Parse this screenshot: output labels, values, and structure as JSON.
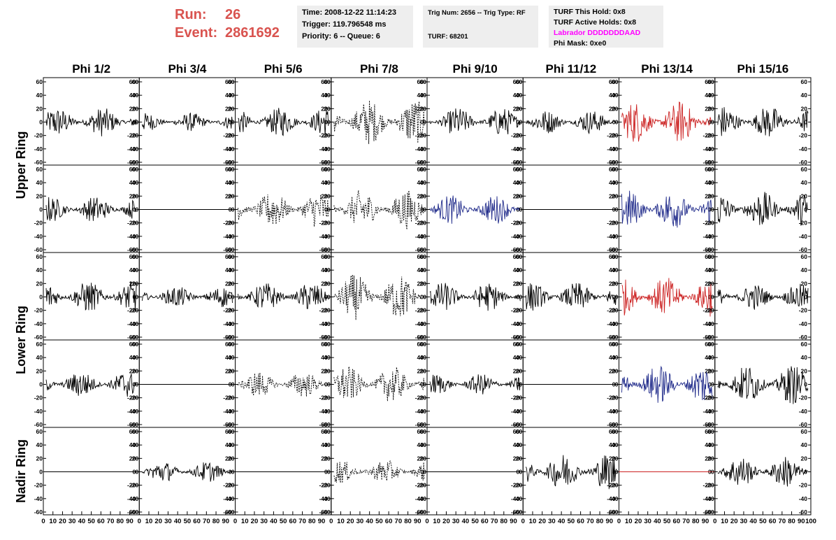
{
  "header": {
    "run_label": "Run:",
    "run_value": "26",
    "event_label": "Event:",
    "event_value": "2861692",
    "time": "Time: 2008-12-22 11:14:23",
    "trigger": "Trigger: 119.796548 ms",
    "priority": "Priority: 6 -- Queue: 6",
    "trig_num": "Trig Num: 2656 -- Trig Type: RF",
    "turf": "TURF: 68201",
    "turf_this_hold": "TURF This Hold: 0x8",
    "turf_active_holds": "TURF Active Holds: 0x8",
    "labrador": "Labrador DDDDDDDAAD",
    "phi_mask": "Phi Mask: 0xe0",
    "colors": {
      "run": "#d9534f",
      "labrador": "#ff00ff",
      "info_bg": "#eeeeee"
    }
  },
  "chart_data": {
    "type": "line",
    "grid": false,
    "columns": [
      "Phi 1/2",
      "Phi 3/4",
      "Phi 5/6",
      "Phi 7/8",
      "Phi 9/10",
      "Phi 11/12",
      "Phi 13/14",
      "Phi 15/16"
    ],
    "row_groups": [
      {
        "label": "Upper Ring",
        "rows": [
          0,
          1
        ]
      },
      {
        "label": "Lower Ring",
        "rows": [
          2,
          3
        ]
      },
      {
        "label": "Nadir Ring",
        "rows": [
          4
        ]
      }
    ],
    "xlim": [
      0,
      100
    ],
    "ylim": [
      -60,
      60
    ],
    "y_ticks": [
      "60",
      "40",
      "20",
      "0",
      "-20",
      "-40",
      "-60"
    ],
    "x_ticks": [
      "0",
      "10",
      "20",
      "30",
      "40",
      "50",
      "60",
      "70",
      "80",
      "90",
      "100"
    ],
    "colors": {
      "black": "#000000",
      "red": "#cc2222",
      "blue": "#1f2a8a"
    },
    "panels": [
      [
        {
          "style": "solid",
          "color": "black",
          "amp": 22
        },
        {
          "style": "solid",
          "color": "black",
          "amp": 14
        },
        {
          "style": "solid",
          "color": "black",
          "amp": 22
        },
        {
          "style": "dashed",
          "color": "black",
          "amp": 35
        },
        {
          "style": "solid",
          "color": "black",
          "amp": 22
        },
        {
          "style": "solid",
          "color": "black",
          "amp": 18
        },
        {
          "style": "solid",
          "color": "red",
          "amp": 32
        },
        {
          "style": "solid",
          "color": "black",
          "amp": 25
        }
      ],
      [
        {
          "style": "solid",
          "color": "black",
          "amp": 20
        },
        {
          "style": "flat",
          "color": "black",
          "amp": 0
        },
        {
          "style": "dashed",
          "color": "black",
          "amp": 28
        },
        {
          "style": "dashed",
          "color": "black",
          "amp": 30
        },
        {
          "style": "solid",
          "color": "blue",
          "amp": 22
        },
        {
          "style": "flat",
          "color": "black",
          "amp": 0
        },
        {
          "style": "solid",
          "color": "blue",
          "amp": 30
        },
        {
          "style": "solid",
          "color": "black",
          "amp": 28
        }
      ],
      [
        {
          "style": "solid",
          "color": "black",
          "amp": 24
        },
        {
          "style": "solid",
          "color": "black",
          "amp": 16
        },
        {
          "style": "solid",
          "color": "black",
          "amp": 22
        },
        {
          "style": "dashed",
          "color": "black",
          "amp": 35
        },
        {
          "style": "solid",
          "color": "black",
          "amp": 22
        },
        {
          "style": "solid",
          "color": "black",
          "amp": 22
        },
        {
          "style": "solid",
          "color": "red",
          "amp": 30
        },
        {
          "style": "solid",
          "color": "black",
          "amp": 20
        }
      ],
      [
        {
          "style": "solid",
          "color": "black",
          "amp": 20
        },
        {
          "style": "flat",
          "color": "black",
          "amp": 0
        },
        {
          "style": "dashed",
          "color": "black",
          "amp": 20
        },
        {
          "style": "dashed",
          "color": "black",
          "amp": 28
        },
        {
          "style": "solid",
          "color": "black",
          "amp": 16
        },
        {
          "style": "flat",
          "color": "black",
          "amp": 0
        },
        {
          "style": "solid",
          "color": "blue",
          "amp": 30
        },
        {
          "style": "solid",
          "color": "black",
          "amp": 30
        }
      ],
      [
        {
          "style": "flat",
          "color": "black",
          "amp": 0
        },
        {
          "style": "solid",
          "color": "black",
          "amp": 16
        },
        {
          "style": "flat",
          "color": "black",
          "amp": 0
        },
        {
          "style": "dashed",
          "color": "black",
          "amp": 18
        },
        {
          "style": "flat",
          "color": "black",
          "amp": 0
        },
        {
          "style": "solid",
          "color": "black",
          "amp": 28
        },
        {
          "style": "flat",
          "color": "red",
          "amp": 0
        },
        {
          "style": "solid",
          "color": "black",
          "amp": 24
        }
      ]
    ]
  }
}
